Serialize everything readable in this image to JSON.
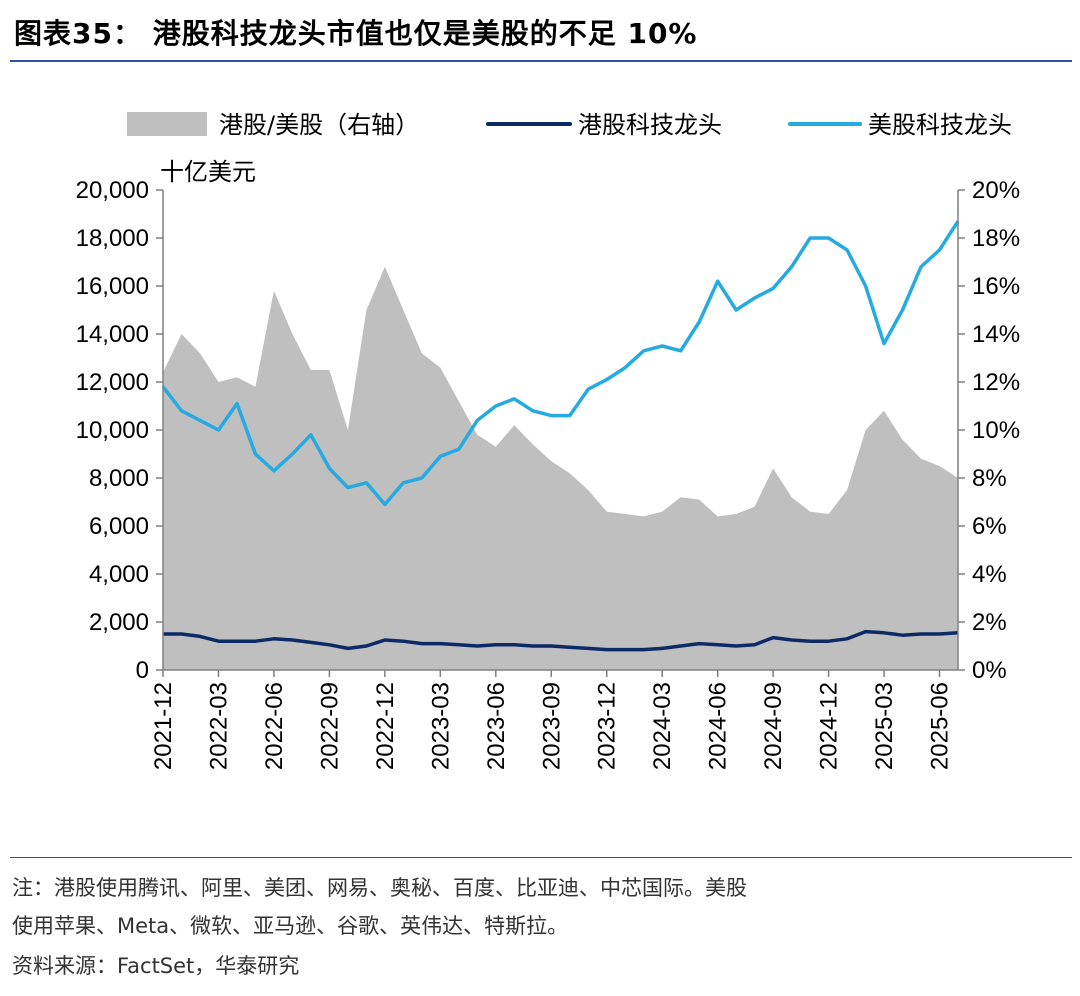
{
  "figure": {
    "title": "图表35：  港股科技龙头市值也仅是美股的不足 10%",
    "note_line1": "注：港股使用腾讯、阿里、美团、网易、奥秘、百度、比亚迪、中芯国际。美股",
    "note_line2": "使用苹果、Meta、微软、亚马逊、谷歌、英伟达、特斯拉。",
    "source": "资料来源：FactSet，华泰研究"
  },
  "chart_data": {
    "type": "line",
    "y_left_unit": "十亿美元",
    "y_left_range": [
      0,
      20000
    ],
    "y_left_ticks": [
      "0",
      "2,000",
      "4,000",
      "6,000",
      "8,000",
      "10,000",
      "12,000",
      "14,000",
      "16,000",
      "18,000",
      "20,000"
    ],
    "y_right_range": [
      0,
      0.2
    ],
    "y_right_ticks": [
      "0%",
      "2%",
      "4%",
      "6%",
      "8%",
      "10%",
      "12%",
      "14%",
      "16%",
      "18%",
      "20%"
    ],
    "x_ticks": [
      "2021-12",
      "2022-03",
      "2022-06",
      "2022-09",
      "2022-12",
      "2023-03",
      "2023-06",
      "2023-09",
      "2023-12",
      "2024-03",
      "2024-06",
      "2024-09",
      "2024-12",
      "2025-03",
      "2025-06"
    ],
    "x_range": [
      "2021-12",
      "2025-07"
    ],
    "legend_position": "top",
    "grid": false,
    "series": [
      {
        "name": "港股/美股（右轴）",
        "kind": "area",
        "axis": "right",
        "color": "#bfbfbf",
        "points": [
          [
            "2021-12",
            0.124
          ],
          [
            "2022-01",
            0.14
          ],
          [
            "2022-02",
            0.132
          ],
          [
            "2022-03",
            0.12
          ],
          [
            "2022-04",
            0.122
          ],
          [
            "2022-05",
            0.118
          ],
          [
            "2022-06",
            0.158
          ],
          [
            "2022-07",
            0.14
          ],
          [
            "2022-08",
            0.125
          ],
          [
            "2022-09",
            0.125
          ],
          [
            "2022-10",
            0.1
          ],
          [
            "2022-11",
            0.15
          ],
          [
            "2022-12",
            0.168
          ],
          [
            "2023-01",
            0.15
          ],
          [
            "2023-02",
            0.132
          ],
          [
            "2023-03",
            0.126
          ],
          [
            "2023-04",
            0.112
          ],
          [
            "2023-05",
            0.098
          ],
          [
            "2023-06",
            0.093
          ],
          [
            "2023-07",
            0.102
          ],
          [
            "2023-08",
            0.094
          ],
          [
            "2023-09",
            0.087
          ],
          [
            "2023-10",
            0.082
          ],
          [
            "2023-11",
            0.075
          ],
          [
            "2023-12",
            0.066
          ],
          [
            "2024-01",
            0.065
          ],
          [
            "2024-02",
            0.064
          ],
          [
            "2024-03",
            0.066
          ],
          [
            "2024-04",
            0.072
          ],
          [
            "2024-05",
            0.071
          ],
          [
            "2024-06",
            0.064
          ],
          [
            "2024-07",
            0.065
          ],
          [
            "2024-08",
            0.068
          ],
          [
            "2024-09",
            0.084
          ],
          [
            "2024-10",
            0.072
          ],
          [
            "2024-11",
            0.066
          ],
          [
            "2024-12",
            0.065
          ],
          [
            "2025-01",
            0.075
          ],
          [
            "2025-02",
            0.1
          ],
          [
            "2025-03",
            0.108
          ],
          [
            "2025-04",
            0.096
          ],
          [
            "2025-05",
            0.088
          ],
          [
            "2025-06",
            0.085
          ],
          [
            "2025-07",
            0.08
          ]
        ]
      },
      {
        "name": "港股科技龙头",
        "kind": "line",
        "axis": "left",
        "color": "#0b2a66",
        "points": [
          [
            "2021-12",
            1500
          ],
          [
            "2022-01",
            1500
          ],
          [
            "2022-02",
            1400
          ],
          [
            "2022-03",
            1200
          ],
          [
            "2022-04",
            1200
          ],
          [
            "2022-05",
            1200
          ],
          [
            "2022-06",
            1300
          ],
          [
            "2022-07",
            1250
          ],
          [
            "2022-08",
            1150
          ],
          [
            "2022-09",
            1050
          ],
          [
            "2022-10",
            900
          ],
          [
            "2022-11",
            1000
          ],
          [
            "2022-12",
            1250
          ],
          [
            "2023-01",
            1200
          ],
          [
            "2023-02",
            1100
          ],
          [
            "2023-03",
            1100
          ],
          [
            "2023-04",
            1050
          ],
          [
            "2023-05",
            1000
          ],
          [
            "2023-06",
            1050
          ],
          [
            "2023-07",
            1050
          ],
          [
            "2023-08",
            1000
          ],
          [
            "2023-09",
            1000
          ],
          [
            "2023-10",
            950
          ],
          [
            "2023-11",
            900
          ],
          [
            "2023-12",
            850
          ],
          [
            "2024-01",
            850
          ],
          [
            "2024-02",
            850
          ],
          [
            "2024-03",
            900
          ],
          [
            "2024-04",
            1000
          ],
          [
            "2024-05",
            1100
          ],
          [
            "2024-06",
            1050
          ],
          [
            "2024-07",
            1000
          ],
          [
            "2024-08",
            1050
          ],
          [
            "2024-09",
            1350
          ],
          [
            "2024-10",
            1250
          ],
          [
            "2024-11",
            1200
          ],
          [
            "2024-12",
            1200
          ],
          [
            "2025-01",
            1300
          ],
          [
            "2025-02",
            1600
          ],
          [
            "2025-03",
            1550
          ],
          [
            "2025-04",
            1450
          ],
          [
            "2025-05",
            1500
          ],
          [
            "2025-06",
            1500
          ],
          [
            "2025-07",
            1550
          ]
        ]
      },
      {
        "name": "美股科技龙头",
        "kind": "line",
        "axis": "left",
        "color": "#25aae1",
        "points": [
          [
            "2021-12",
            11800
          ],
          [
            "2022-01",
            10800
          ],
          [
            "2022-02",
            10400
          ],
          [
            "2022-03",
            10000
          ],
          [
            "2022-04",
            11100
          ],
          [
            "2022-05",
            9000
          ],
          [
            "2022-06",
            8300
          ],
          [
            "2022-07",
            9000
          ],
          [
            "2022-08",
            9800
          ],
          [
            "2022-09",
            8400
          ],
          [
            "2022-10",
            7600
          ],
          [
            "2022-11",
            7800
          ],
          [
            "2022-12",
            6900
          ],
          [
            "2023-01",
            7800
          ],
          [
            "2023-02",
            8000
          ],
          [
            "2023-03",
            8900
          ],
          [
            "2023-04",
            9200
          ],
          [
            "2023-05",
            10400
          ],
          [
            "2023-06",
            11000
          ],
          [
            "2023-07",
            11300
          ],
          [
            "2023-08",
            10800
          ],
          [
            "2023-09",
            10600
          ],
          [
            "2023-10",
            10600
          ],
          [
            "2023-11",
            11700
          ],
          [
            "2023-12",
            12100
          ],
          [
            "2024-01",
            12600
          ],
          [
            "2024-02",
            13300
          ],
          [
            "2024-03",
            13500
          ],
          [
            "2024-04",
            13300
          ],
          [
            "2024-05",
            14500
          ],
          [
            "2024-06",
            16200
          ],
          [
            "2024-07",
            15000
          ],
          [
            "2024-08",
            15500
          ],
          [
            "2024-09",
            15900
          ],
          [
            "2024-10",
            16800
          ],
          [
            "2024-11",
            18000
          ],
          [
            "2024-12",
            18000
          ],
          [
            "2025-01",
            17500
          ],
          [
            "2025-02",
            16000
          ],
          [
            "2025-03",
            13600
          ],
          [
            "2025-04",
            15000
          ],
          [
            "2025-05",
            16800
          ],
          [
            "2025-06",
            17500
          ],
          [
            "2025-07",
            18700
          ]
        ]
      }
    ]
  }
}
